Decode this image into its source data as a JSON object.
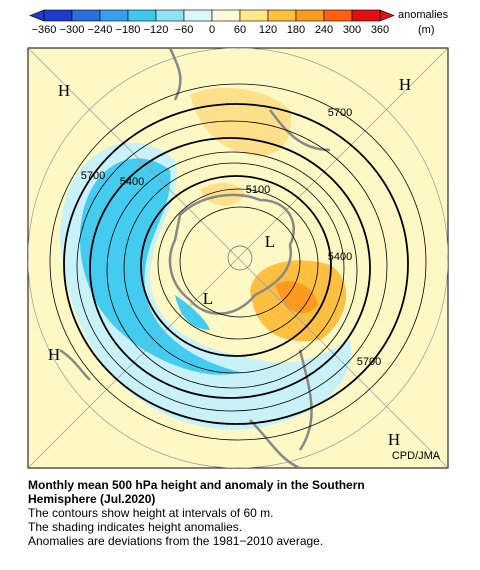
{
  "colorbar": {
    "ticks": [
      "−360",
      "−300",
      "−240",
      "−180",
      "−120",
      "−60",
      "0",
      "60",
      "120",
      "180",
      "240",
      "300",
      "360"
    ],
    "colors": [
      "#1e3ccc",
      "#2c6ee0",
      "#3a9ef0",
      "#40c8f0",
      "#8ee4f6",
      "#d8f8fc",
      "#fffbd8",
      "#ffe88a",
      "#ffc040",
      "#ff9a20",
      "#ff6010",
      "#e01010"
    ],
    "unit_label": "anomalies",
    "unit": "(m)"
  },
  "map": {
    "contour_labels": [
      "5700",
      "5700",
      "5400",
      "5100",
      "5400",
      "5700"
    ],
    "markers": [
      "H",
      "H",
      "H",
      "H",
      "L",
      "L"
    ],
    "credit": "CPD/JMA"
  },
  "caption": {
    "title": "Monthly mean 500 hPa height and anomaly in the Southern Hemisphere (Jul.2020)",
    "lines": [
      "The contours show height at intervals of 60 m.",
      "The shading indicates height anomalies.",
      "Anomalies are deviations from the 1981−2010 average."
    ]
  }
}
